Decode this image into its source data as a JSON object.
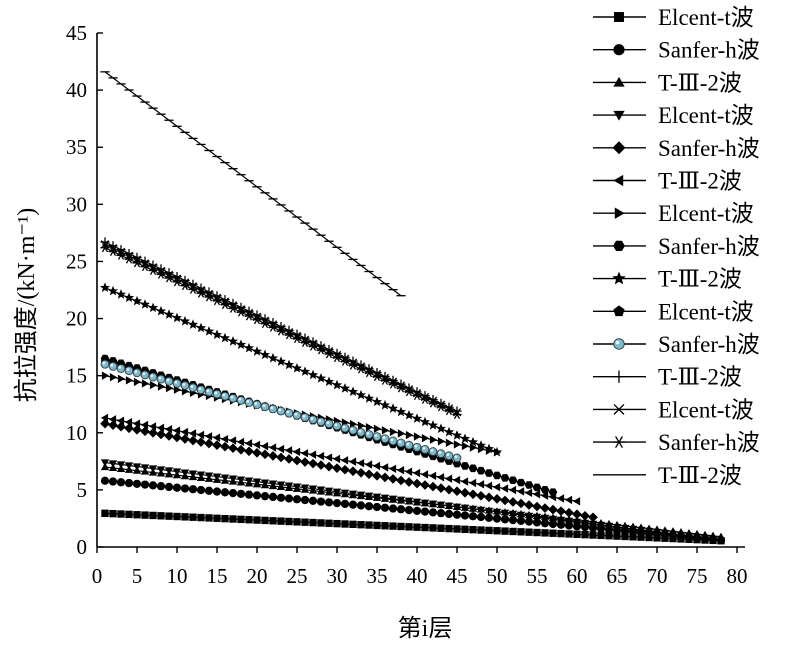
{
  "chart_data": {
    "type": "line",
    "title": "",
    "xlabel": "第i层",
    "ylabel": "抗拉强度/(kN·m⁻¹)",
    "xlim": [
      0,
      80
    ],
    "ylim": [
      0,
      45
    ],
    "xticks": [
      "0",
      "5",
      "10",
      "15",
      "20",
      "25",
      "30",
      "35",
      "40",
      "45",
      "50",
      "55",
      "60",
      "65",
      "70",
      "75",
      "80"
    ],
    "yticks": [
      "0",
      "5",
      "10",
      "15",
      "20",
      "25",
      "30",
      "35",
      "40",
      "45"
    ],
    "grid": false,
    "legend_position": "right",
    "series": [
      {
        "name": "Elcent-t波",
        "marker": "square",
        "n_layers": 78,
        "y_start": 2.95,
        "y_end": 0.55
      },
      {
        "name": "Sanfer-h波",
        "marker": "circle",
        "n_layers": 78,
        "y_start": 5.8,
        "y_end": 0.6
      },
      {
        "name": "T-Ⅲ-2波",
        "marker": "triangle-up",
        "n_layers": 78,
        "y_start": 7.0,
        "y_end": 0.9
      },
      {
        "name": "Elcent-t波",
        "marker": "triangle-down",
        "n_layers": 77,
        "y_start": 7.4,
        "y_end": 0.7
      },
      {
        "name": "Sanfer-h波",
        "marker": "diamond",
        "n_layers": 62,
        "y_start": 10.8,
        "y_end": 2.6
      },
      {
        "name": "T-Ⅲ-2波",
        "marker": "triangle-left",
        "n_layers": 60,
        "y_start": 11.3,
        "y_end": 4.0
      },
      {
        "name": "Elcent-t波",
        "marker": "triangle-right",
        "n_layers": 50,
        "y_start": 15.0,
        "y_end": 8.3
      },
      {
        "name": "Sanfer-h波",
        "marker": "hexagon",
        "n_layers": 57,
        "y_start": 16.5,
        "y_end": 4.8
      },
      {
        "name": "T-Ⅲ-2波",
        "marker": "star",
        "n_layers": 50,
        "y_start": 22.7,
        "y_end": 8.3
      },
      {
        "name": "Elcent-t波",
        "marker": "pentagon",
        "n_layers": 45,
        "y_start": 16.2,
        "y_end": 7.7
      },
      {
        "name": "Sanfer-h波",
        "marker": "circle-shaded",
        "n_layers": 45,
        "y_start": 16.0,
        "y_end": 7.8
      },
      {
        "name": "T-Ⅲ-2波",
        "marker": "plus",
        "n_layers": 45,
        "y_start": 26.7,
        "y_end": 11.9
      },
      {
        "name": "Elcent-t波",
        "marker": "x",
        "n_layers": 45,
        "y_start": 26.5,
        "y_end": 11.8
      },
      {
        "name": "Sanfer-h波",
        "marker": "asterisk",
        "n_layers": 45,
        "y_start": 26.2,
        "y_end": 11.6
      },
      {
        "name": "T-Ⅲ-2波",
        "marker": "dash",
        "n_layers": 38,
        "y_start": 41.6,
        "y_end": 22.0
      }
    ]
  }
}
